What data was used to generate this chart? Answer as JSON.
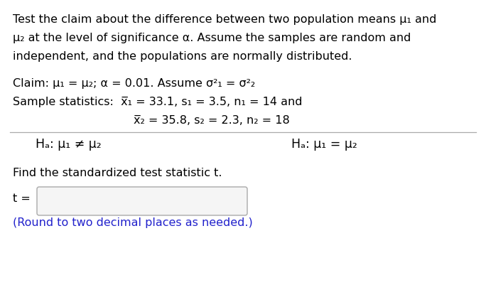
{
  "bg_color": "#ffffff",
  "line1": "Test the claim about the difference between two population means μ₁ and",
  "line2": "μ₂ at the level of significance α. Assume the samples are random and",
  "line3": "independent, and the populations are normally distributed.",
  "claim_line": "Claim: μ₁ = μ₂; α = 0.01. Assume σ²₁ = σ²₂",
  "sample_line1": "Sample statistics:  x̅₁ = 33.1, s₁ = 3.5, n₁ = 14 and",
  "sample_line2": "x̅₂ = 35.8, s₂ = 2.3, n₂ = 18",
  "ha_left": "Hₐ: μ₁ ≠ μ₂",
  "ha_right": "Hₐ: μ₁ = μ₂",
  "find_text": "Find the standardized test statistic t.",
  "t_label": "t =",
  "round_text": "(Round to two decimal places as needed.)",
  "text_color": "#000000",
  "blue_color": "#2222cc",
  "font_size": 11.5,
  "sample_line2_indent": 0.275
}
